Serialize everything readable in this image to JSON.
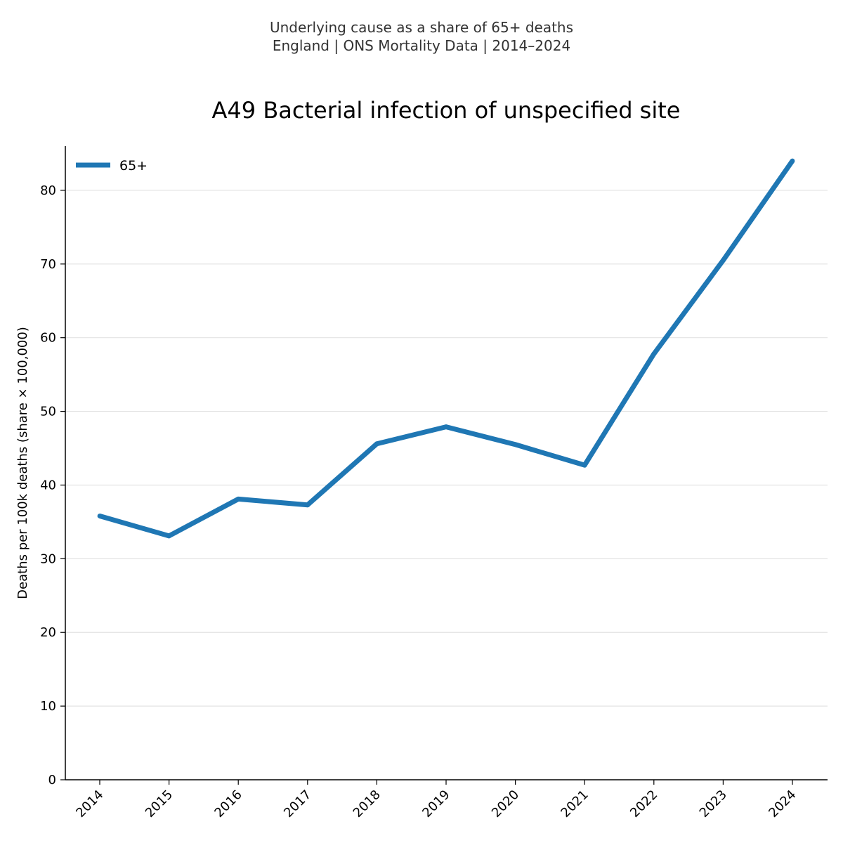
{
  "suptitle": {
    "line1": "Underlying cause as a share of 65+ deaths",
    "line2": "England | ONS Mortality Data | 2014–2024"
  },
  "chart_data": {
    "type": "line",
    "title": "A49 Bacterial infection of unspecified site",
    "xlabel": "",
    "ylabel": "Deaths per 100k deaths (share × 100,000)",
    "categories": [
      "2014",
      "2015",
      "2016",
      "2017",
      "2018",
      "2019",
      "2020",
      "2021",
      "2022",
      "2023",
      "2024"
    ],
    "series": [
      {
        "name": "65+",
        "color": "#1f77b4",
        "values": [
          35.8,
          33.1,
          38.1,
          37.3,
          45.6,
          47.9,
          45.5,
          42.7,
          57.8,
          70.5,
          84.0
        ]
      }
    ],
    "ylim": [
      0,
      86
    ],
    "yticks": [
      0,
      10,
      20,
      30,
      40,
      50,
      60,
      70,
      80
    ],
    "grid": "horizontal",
    "legend": "top-left"
  }
}
